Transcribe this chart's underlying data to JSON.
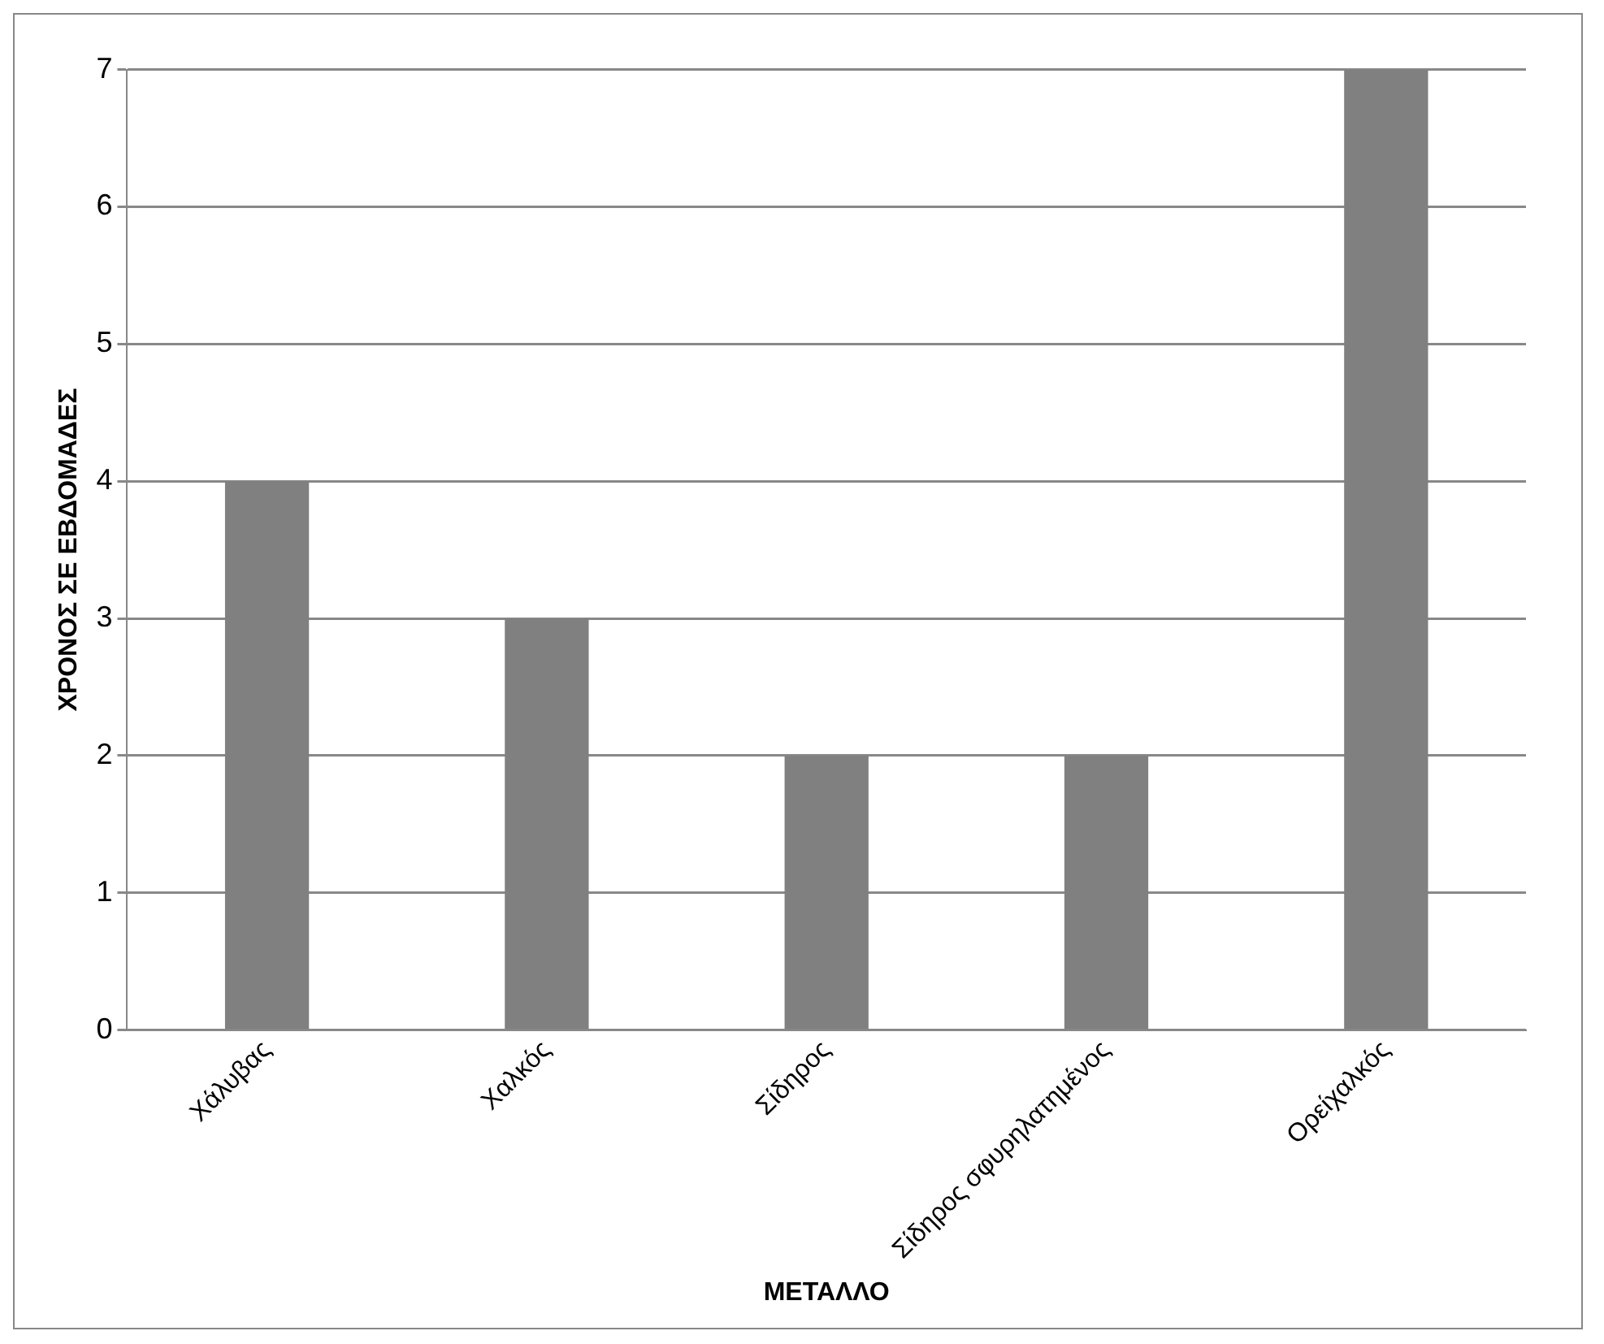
{
  "chart_data": {
    "type": "bar",
    "xlabel": "ΜΕΤΑΛΛΟ",
    "ylabel": "ΧΡΟΝΟΣ ΣΕ ΕΒΔΟΜΑΔΕΣ",
    "categories": [
      "Χάλυβας",
      "Χαλκός",
      "Σίδηρος",
      "Σίδηρος σφυρηλατημένος",
      "Ορείχαλκός"
    ],
    "values": [
      4,
      3,
      2,
      2,
      7
    ],
    "color": "#808080",
    "ylim": [
      0,
      7
    ],
    "yticks": [
      0,
      1,
      2,
      3,
      4,
      5,
      6,
      7
    ],
    "grid": "y",
    "legend": false
  }
}
